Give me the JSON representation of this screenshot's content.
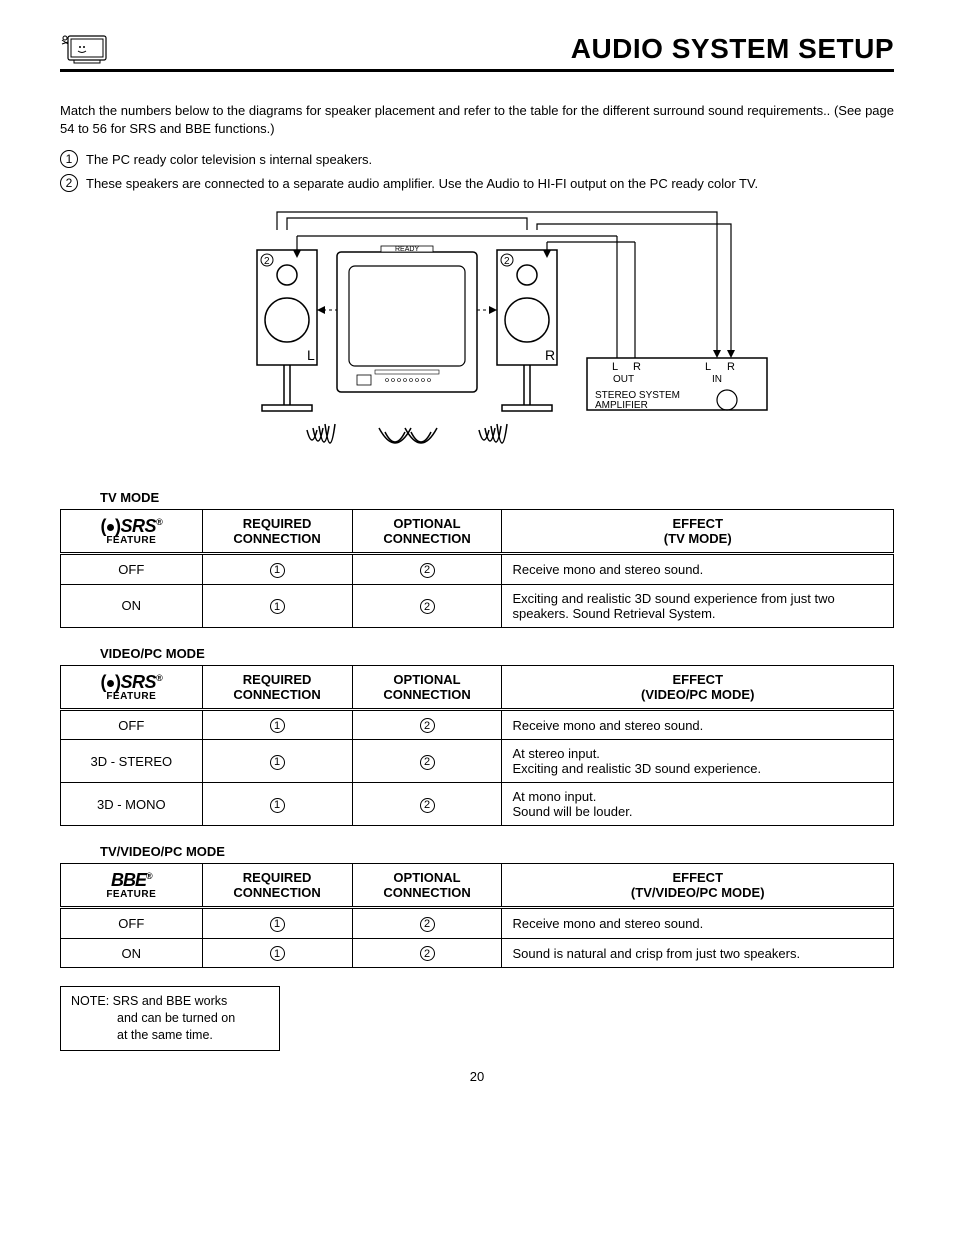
{
  "header": {
    "title": "AUDIO SYSTEM SETUP"
  },
  "intro": {
    "text": "Match the numbers below to the diagrams for speaker placement and refer to the table for the different surround sound requirements.. (See page 54 to 56 for SRS and BBE functions.)",
    "bullets": [
      {
        "num": "1",
        "text": "The PC ready color television s internal speakers."
      },
      {
        "num": "2",
        "text": "These speakers are connected to a separate audio amplifier.  Use the  Audio to HI-FI  output on the PC ready color TV."
      }
    ]
  },
  "diagram": {
    "labels": {
      "ready": "READY",
      "left": "L",
      "right": "R",
      "out": "OUT",
      "in": "IN",
      "amp_line1": "STEREO SYSTEM",
      "amp_line2": "AMPLIFIER",
      "two": "2"
    }
  },
  "tables": [
    {
      "mode_label": "TV MODE",
      "logo": "srs",
      "headers": {
        "feature": "FEATURE",
        "required": "REQUIRED CONNECTION",
        "optional": "OPTIONAL CONNECTION",
        "effect_l1": "EFFECT",
        "effect_l2": "(TV MODE)"
      },
      "rows": [
        {
          "feature": "OFF",
          "req": "1",
          "opt": "2",
          "effect": "Receive mono and stereo sound."
        },
        {
          "feature": "ON",
          "req": "1",
          "opt": "2",
          "effect": "Exciting and realistic 3D sound experience from just two speakers. Sound Retrieval System."
        }
      ]
    },
    {
      "mode_label": "VIDEO/PC MODE",
      "logo": "srs",
      "headers": {
        "feature": "FEATURE",
        "required": "REQUIRED CONNECTION",
        "optional": "OPTIONAL CONNECTION",
        "effect_l1": "EFFECT",
        "effect_l2": "(VIDEO/PC MODE)"
      },
      "rows": [
        {
          "feature": "OFF",
          "req": "1",
          "opt": "2",
          "effect": "Receive mono and stereo sound."
        },
        {
          "feature": "3D - STEREO",
          "req": "1",
          "opt": "2",
          "effect": "At stereo input.\nExciting and realistic 3D sound experience."
        },
        {
          "feature": "3D - MONO",
          "req": "1",
          "opt": "2",
          "effect": "At mono input.\nSound will be louder."
        }
      ]
    },
    {
      "mode_label": "TV/VIDEO/PC MODE",
      "logo": "bbe",
      "headers": {
        "feature": "FEATURE",
        "required": "REQUIRED CONNECTION",
        "optional": "OPTIONAL CONNECTION",
        "effect_l1": "EFFECT",
        "effect_l2": "(TV/VIDEO/PC MODE)"
      },
      "rows": [
        {
          "feature": "OFF",
          "req": "1",
          "opt": "2",
          "effect": "Receive mono and stereo sound."
        },
        {
          "feature": "ON",
          "req": "1",
          "opt": "2",
          "effect": "Sound is natural and crisp from just two speakers."
        }
      ]
    }
  ],
  "note": {
    "l1": "NOTE: SRS and BBE works",
    "l2": "and can be turned on",
    "l3": "at the same time."
  },
  "page_number": "20",
  "styling": {
    "page_bg": "#ffffff",
    "text_color": "#000000",
    "border_color": "#000000",
    "title_fontsize": 28,
    "body_fontsize": 13,
    "table_header_double_border": true,
    "font_family": "Arial, Helvetica, sans-serif",
    "column_widths_pct": [
      17,
      18,
      18,
      47
    ]
  }
}
